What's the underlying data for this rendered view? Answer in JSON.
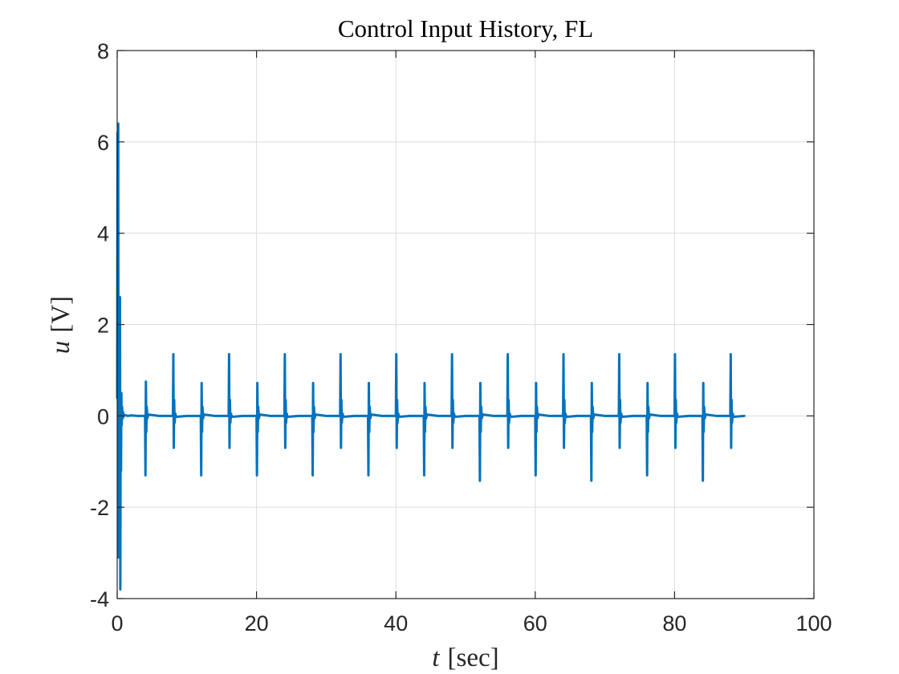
{
  "chart_data": {
    "type": "line",
    "title": "Control Input History, FL",
    "xlabel": {
      "var": "t",
      "unit": "[sec]"
    },
    "ylabel": {
      "var": "u",
      "unit": "[V]"
    },
    "xlim": [
      0,
      100
    ],
    "ylim": [
      -4,
      8
    ],
    "xticks": [
      0,
      20,
      40,
      60,
      80,
      100
    ],
    "yticks": [
      -4,
      -2,
      0,
      2,
      4,
      6,
      8
    ],
    "xtick_labels": [
      "0",
      "20",
      "40",
      "60",
      "80",
      "100"
    ],
    "ytick_labels": [
      "-4",
      "-2",
      "0",
      "2",
      "4",
      "6",
      "8"
    ],
    "grid": true,
    "series": [
      {
        "color": "#0072BD",
        "x": [
          0,
          0.05,
          0.1,
          0.15,
          0.2,
          0.25,
          0.3,
          0.35,
          0.4,
          0.45,
          0.5,
          0.55,
          0.6,
          0.65,
          0.7,
          0.75,
          0.8,
          0.85,
          0.9,
          0.95,
          1.0,
          1.5,
          2,
          3,
          4,
          4.06,
          4.12,
          4.18,
          4.24,
          4.34,
          4.45,
          6,
          8,
          8.06,
          8.12,
          8.18,
          8.24,
          8.34,
          8.45,
          10,
          12,
          12.06,
          12.12,
          12.18,
          12.24,
          12.34,
          12.45,
          14,
          16,
          16.06,
          16.12,
          16.18,
          16.24,
          16.34,
          16.45,
          18,
          20,
          20.06,
          20.12,
          20.18,
          20.24,
          20.34,
          20.45,
          22,
          24,
          24.06,
          24.12,
          24.18,
          24.24,
          24.34,
          24.45,
          26,
          28,
          28.06,
          28.12,
          28.18,
          28.24,
          28.34,
          28.45,
          30,
          32,
          32.06,
          32.12,
          32.18,
          32.24,
          32.34,
          32.45,
          34,
          36,
          36.06,
          36.12,
          36.18,
          36.24,
          36.34,
          36.45,
          38,
          40,
          40.06,
          40.12,
          40.18,
          40.24,
          40.34,
          40.45,
          42,
          44,
          44.06,
          44.12,
          44.18,
          44.24,
          44.34,
          44.45,
          46,
          48,
          48.06,
          48.12,
          48.18,
          48.24,
          48.34,
          48.45,
          50,
          52,
          52.06,
          52.12,
          52.18,
          52.24,
          52.34,
          52.45,
          54,
          56,
          56.06,
          56.12,
          56.18,
          56.24,
          56.34,
          56.45,
          58,
          60,
          60.06,
          60.12,
          60.18,
          60.24,
          60.34,
          60.45,
          62,
          64,
          64.06,
          64.12,
          64.18,
          64.24,
          64.34,
          64.45,
          66,
          68,
          68.06,
          68.12,
          68.18,
          68.24,
          68.34,
          68.45,
          70,
          72,
          72.06,
          72.12,
          72.18,
          72.24,
          72.34,
          72.45,
          74,
          76,
          76.06,
          76.12,
          76.18,
          76.24,
          76.34,
          76.45,
          78,
          80,
          80.06,
          80.12,
          80.18,
          80.24,
          80.34,
          80.45,
          82,
          84,
          84.06,
          84.12,
          84.18,
          84.24,
          84.34,
          84.45,
          86,
          88,
          88.06,
          88.12,
          88.18,
          88.24,
          88.34,
          88.45,
          90
        ],
        "y": [
          0.4,
          6.2,
          0.5,
          6.4,
          -3.1,
          0.6,
          1.7,
          -2.5,
          2.6,
          -3.8,
          0.4,
          -1.2,
          0.5,
          -0.2,
          0.2,
          0.05,
          -0.05,
          0.08,
          -0.02,
          0.03,
          0.02,
          0.0,
          0.01,
          0.0,
          0.0,
          -1.3,
          0.75,
          -0.35,
          0.2,
          -0.05,
          0.03,
          0.0,
          0.0,
          1.35,
          -0.7,
          0.35,
          -0.15,
          0.05,
          -0.02,
          0.0,
          0.0,
          -1.3,
          0.72,
          -0.35,
          0.2,
          -0.05,
          0.03,
          0.0,
          0.0,
          1.35,
          -0.7,
          0.35,
          -0.15,
          0.05,
          -0.02,
          0.0,
          0.0,
          -1.3,
          0.72,
          -0.35,
          0.2,
          -0.05,
          0.03,
          0.0,
          0.0,
          1.35,
          -0.7,
          0.35,
          -0.15,
          0.05,
          -0.02,
          0.0,
          0.0,
          -1.3,
          0.72,
          -0.35,
          0.2,
          -0.05,
          0.03,
          0.0,
          0.0,
          1.35,
          -0.7,
          0.35,
          -0.15,
          0.05,
          -0.02,
          0.0,
          0.0,
          -1.3,
          0.72,
          -0.35,
          0.2,
          -0.05,
          0.03,
          0.0,
          0.0,
          1.35,
          -0.7,
          0.35,
          -0.15,
          0.05,
          -0.02,
          0.0,
          0.0,
          -1.3,
          0.72,
          -0.35,
          0.2,
          -0.05,
          0.03,
          0.0,
          0.0,
          1.35,
          -0.7,
          0.35,
          -0.15,
          0.05,
          -0.02,
          0.0,
          0.0,
          -1.42,
          0.72,
          -0.35,
          0.2,
          -0.05,
          0.03,
          0.0,
          0.0,
          1.35,
          -0.7,
          0.35,
          -0.15,
          0.05,
          -0.02,
          0.0,
          0.0,
          -1.3,
          0.72,
          -0.35,
          0.2,
          -0.05,
          0.03,
          0.0,
          0.0,
          1.35,
          -0.7,
          0.35,
          -0.15,
          0.05,
          -0.02,
          0.0,
          0.0,
          -1.42,
          0.72,
          -0.35,
          0.2,
          -0.05,
          0.03,
          0.0,
          0.0,
          1.35,
          -0.7,
          0.35,
          -0.15,
          0.05,
          -0.02,
          0.0,
          0.0,
          -1.3,
          0.72,
          -0.35,
          0.2,
          -0.05,
          0.03,
          0.0,
          0.0,
          1.35,
          -0.7,
          0.35,
          -0.15,
          0.05,
          -0.02,
          0.0,
          0.0,
          -1.42,
          0.72,
          -0.35,
          0.2,
          -0.05,
          0.03,
          0.0,
          0.0,
          1.35,
          -0.7,
          0.35,
          -0.15,
          0.05,
          -0.02,
          0.0
        ]
      }
    ]
  }
}
